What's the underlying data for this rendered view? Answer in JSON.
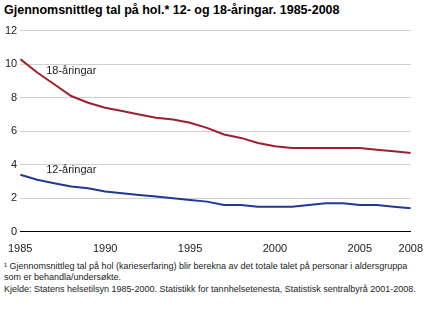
{
  "chart_data": {
    "type": "line",
    "title": "Gjennomsnittleg tal på hol.* 12- og 18-åringar. 1985-2008",
    "x": [
      1985,
      1986,
      1987,
      1988,
      1989,
      1990,
      1991,
      1992,
      1993,
      1994,
      1995,
      1996,
      1997,
      1998,
      1999,
      2000,
      2001,
      2002,
      2003,
      2004,
      2005,
      2006,
      2007,
      2008
    ],
    "series": [
      {
        "name": "18-åringar",
        "color": "#9e1f2e",
        "values": [
          10.3,
          9.5,
          8.8,
          8.1,
          7.7,
          7.4,
          7.2,
          7.0,
          6.8,
          6.7,
          6.5,
          6.2,
          5.8,
          5.6,
          5.3,
          5.1,
          5.0,
          5.0,
          5.0,
          5.0,
          5.0,
          4.9,
          4.8,
          4.7
        ]
      },
      {
        "name": "12-åringar",
        "color": "#1f3a93",
        "values": [
          3.4,
          3.1,
          2.9,
          2.7,
          2.6,
          2.4,
          2.3,
          2.2,
          2.1,
          2.0,
          1.9,
          1.8,
          1.6,
          1.6,
          1.5,
          1.5,
          1.5,
          1.6,
          1.7,
          1.7,
          1.6,
          1.6,
          1.5,
          1.4
        ]
      }
    ],
    "xlim": [
      1985,
      2008
    ],
    "xticks": [
      1985,
      1990,
      1995,
      2000,
      2005,
      2008
    ],
    "ylim": [
      0,
      12
    ],
    "yticks": [
      0,
      2,
      4,
      6,
      8,
      10,
      12
    ],
    "grid": true,
    "footnote": "¹ Gjennomsnittleg tal på hol (karieserfaring) blir berekna av det totale talet på personar i aldersgruppa som er behandla/undersøkte.",
    "source": "Kjelde: Statens helsetilsyn 1985-2000. Statistikk for tannhelsetenesta, Statistisk sentralbyrå 2001-2008."
  }
}
